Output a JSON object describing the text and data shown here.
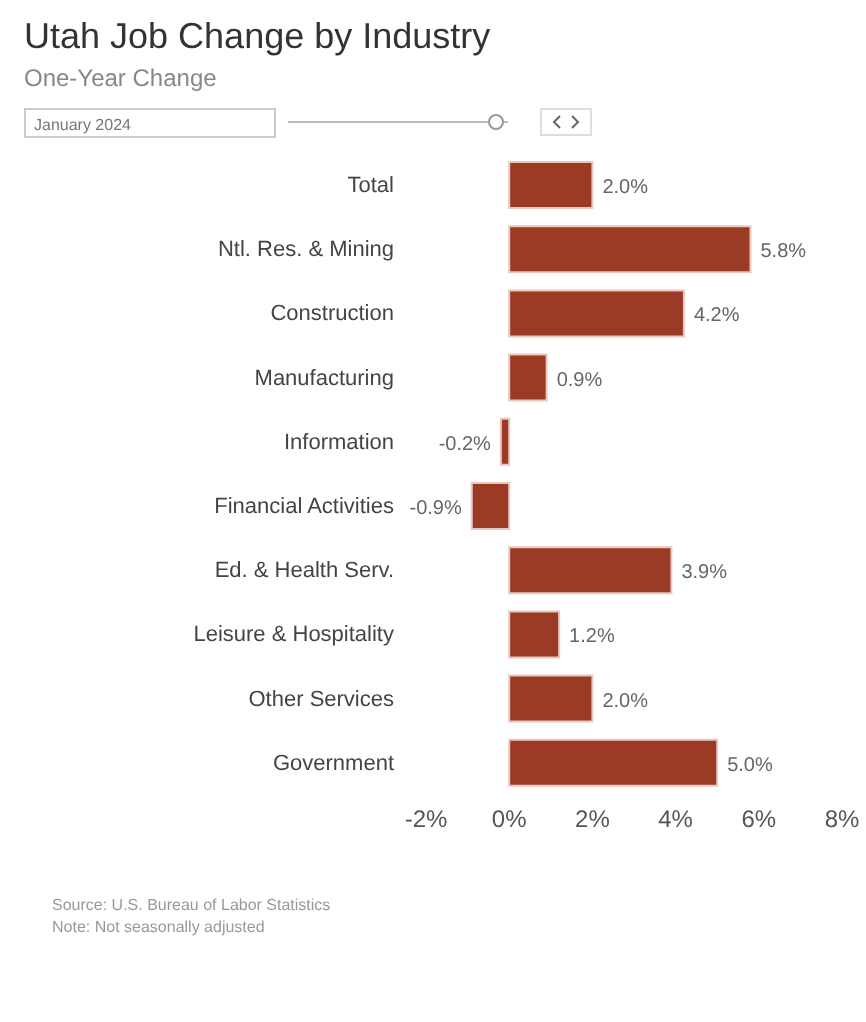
{
  "chart_data": {
    "type": "bar",
    "orientation": "horizontal",
    "title": "Utah Job Change by Industry",
    "subtitle": "One-Year Change",
    "categories": [
      "Total",
      "Ntl. Res. & Mining",
      "Construction",
      "Manufacturing",
      "Information",
      "Financial Activities",
      "Ed. & Health Serv.",
      "Leisure & Hospitality",
      "Other Services",
      "Government"
    ],
    "values": [
      2.0,
      5.8,
      4.2,
      0.9,
      -0.2,
      -0.9,
      3.9,
      1.2,
      2.0,
      5.0
    ],
    "value_labels": [
      "2.0%",
      "5.8%",
      "4.2%",
      "0.9%",
      "-0.2%",
      "-0.9%",
      "3.9%",
      "1.2%",
      "2.0%",
      "5.0%"
    ],
    "color": "#9b3b26",
    "xlim": [
      -2,
      8
    ],
    "xticks": [
      {
        "value": -2,
        "label": "-2%"
      },
      {
        "value": 0,
        "label": "0%"
      },
      {
        "value": 2,
        "label": "2%"
      },
      {
        "value": 4,
        "label": "4%"
      },
      {
        "value": 6,
        "label": "6%"
      },
      {
        "value": 8,
        "label": "8%"
      }
    ],
    "grid": false,
    "legend": false,
    "annotations": [
      "January 2024",
      "Source: U.S. Bureau of Labor Statistics",
      "Note: Not seasonally adjusted"
    ]
  }
}
